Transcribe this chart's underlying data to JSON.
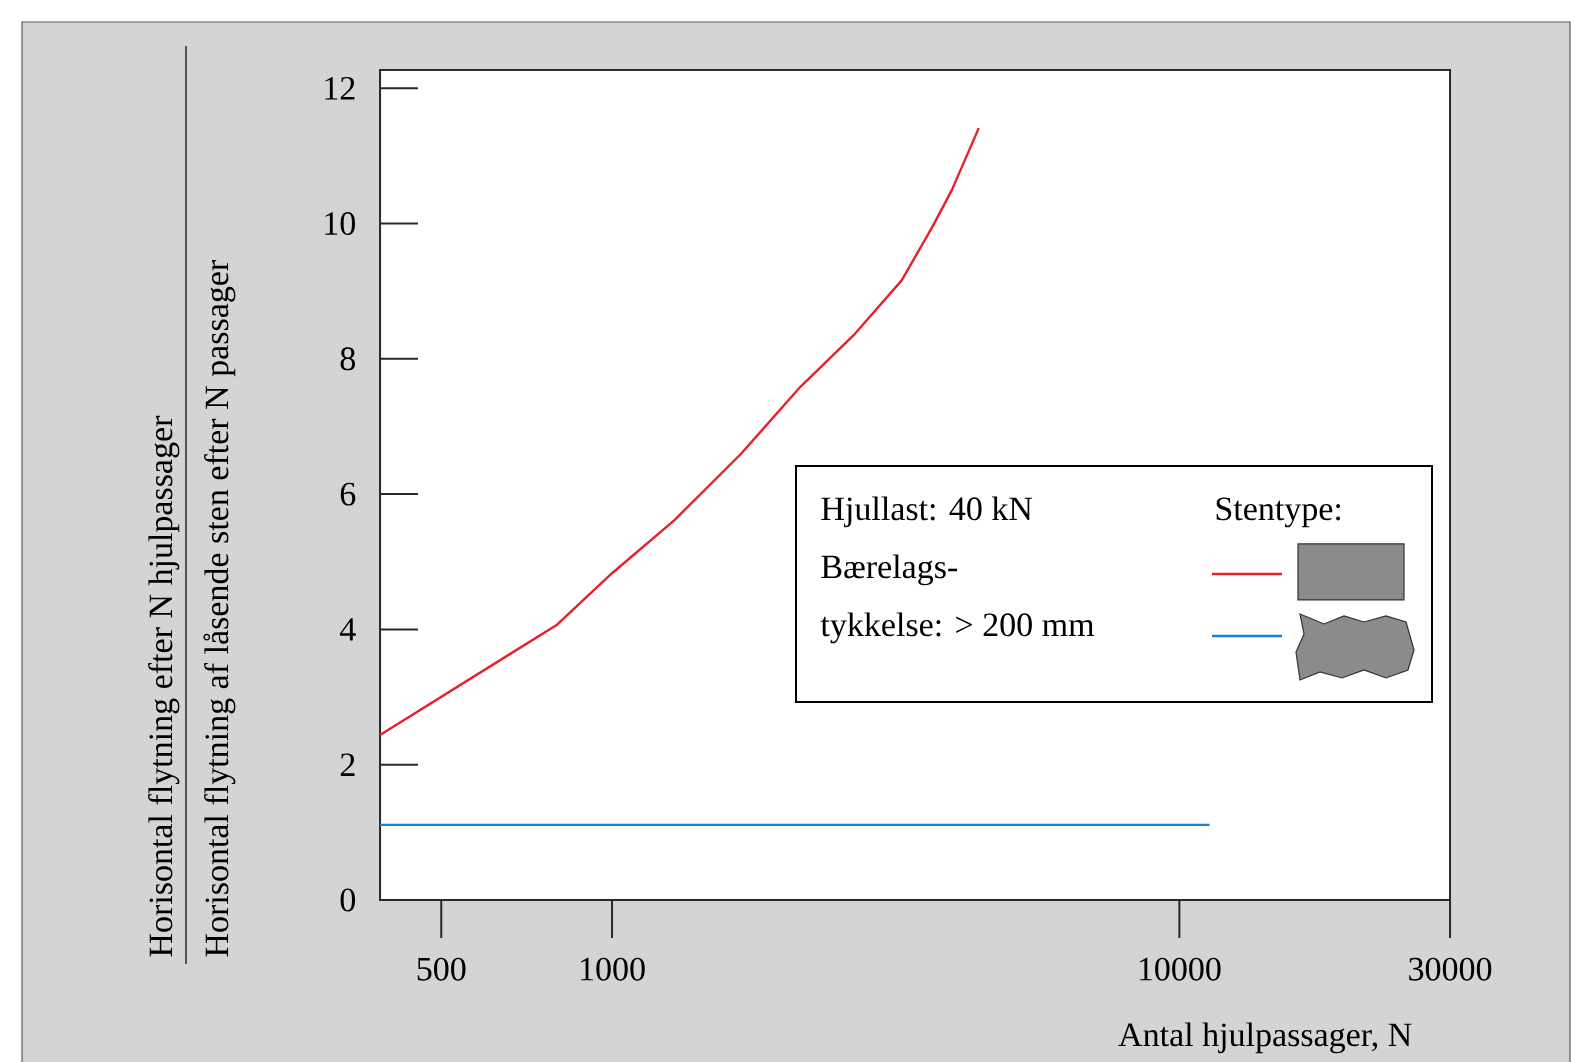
{
  "chart_data": {
    "type": "line",
    "xlabel": "Antal hjulpassager, N",
    "ylabel": "Horisontal flytning efter N hjulpassager",
    "legend_title": "Stentype:",
    "annotations": [
      "Horisontal flytning af låsende sten efter N passager",
      "Hjullast: 40 kN",
      "Bærelags-",
      "tykkelse: > 200 mm"
    ],
    "log": "x",
    "xlim": [
      390,
      30000
    ],
    "ylim": [
      0,
      12.27
    ],
    "xticks": [
      500,
      1000,
      10000,
      30000
    ],
    "yticks": [
      0,
      2,
      4,
      6,
      8,
      10,
      12
    ],
    "grid": false,
    "line_style": "solid",
    "marker": "none",
    "series": [
      {
        "color": "#e8202a",
        "x": [
          390,
          800,
          1000,
          1290,
          1690,
          2150,
          2680,
          3240,
          3670,
          3970,
          4430
        ],
        "values": [
          2.44,
          4.07,
          4.83,
          5.62,
          6.6,
          7.59,
          8.37,
          9.16,
          9.95,
          10.49,
          11.41
        ]
      },
      {
        "color": "#1a7fcf",
        "x": [
          390,
          11300
        ],
        "values": [
          1.11,
          1.11
        ]
      }
    ]
  }
}
